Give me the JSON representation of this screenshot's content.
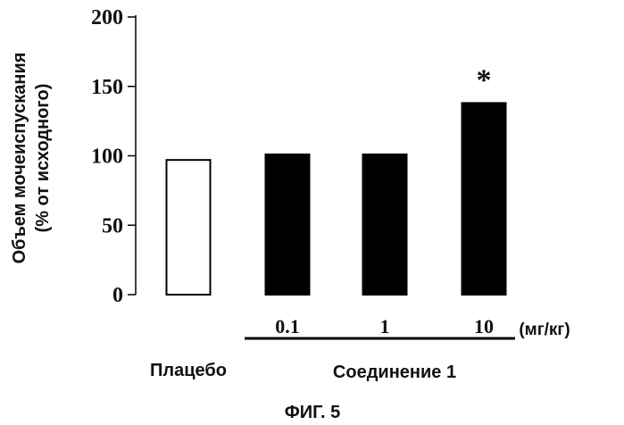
{
  "chart_data": {
    "type": "bar",
    "ylabel_line1": "Объем мочеиспускания",
    "ylabel_line2": "(% от исходного)",
    "ylim": [
      0,
      200
    ],
    "yticks": [
      "0",
      "50",
      "100",
      "150",
      "200"
    ],
    "categories": [
      "",
      "0.1",
      "1",
      "10"
    ],
    "values": [
      97,
      101,
      101,
      138
    ],
    "bar_fill": [
      "#ffffff",
      "#000000",
      "#000000",
      "#000000"
    ],
    "annotations": [
      "",
      "",
      "",
      "*"
    ],
    "x_unit": "(мг/кг)",
    "group_labels": {
      "placebo": "Плацебо",
      "compound": "Соединение 1"
    },
    "caption": "ФИГ. 5"
  }
}
